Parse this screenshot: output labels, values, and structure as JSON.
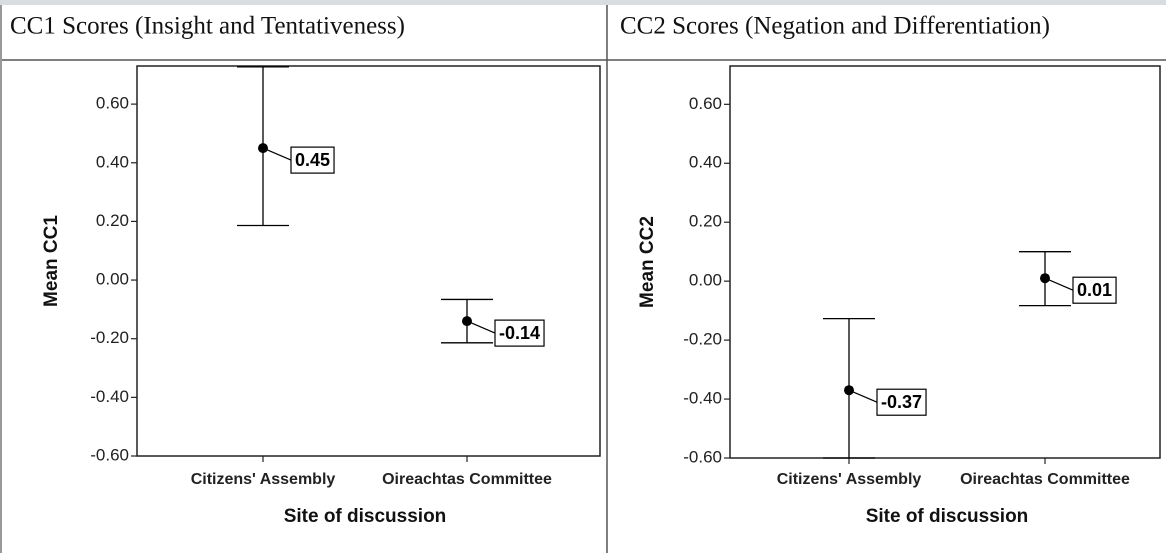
{
  "chart_data": [
    {
      "type": "errorbar",
      "title": "CC1 Scores (Insight and Tentativeness)",
      "x_label": "Site of discussion",
      "y_label": "Mean CC1",
      "categories": [
        "Citizens' Assembly",
        "Oireachtas Committee"
      ],
      "values": [
        0.45,
        -0.14
      ],
      "lower": [
        0.186,
        -0.214
      ],
      "upper": [
        0.727,
        -0.066
      ],
      "ylim": [
        -0.6,
        0.73
      ],
      "yticks": [
        {
          "value": -0.6,
          "label": "-0.60"
        },
        {
          "value": -0.4,
          "label": "-0.40"
        },
        {
          "value": -0.2,
          "label": "-0.20"
        },
        {
          "value": 0,
          "label": "0.00"
        },
        {
          "value": 0.2,
          "label": "0.20"
        },
        {
          "value": 0.4,
          "label": "0.40"
        },
        {
          "value": 0.6,
          "label": "0.60"
        }
      ],
      "color": "#000000"
    },
    {
      "type": "errorbar",
      "title": "CC2 Scores (Negation and Differentiation)",
      "x_label": "Site of discussion",
      "y_label": "Mean CC2",
      "categories": [
        "Citizens' Assembly",
        "Oireachtas Committee"
      ],
      "values": [
        -0.37,
        0.01
      ],
      "lower": [
        -0.6,
        -0.083
      ],
      "upper": [
        -0.127,
        0.1
      ],
      "ylim": [
        -0.6,
        0.73
      ],
      "yticks": [
        {
          "value": -0.6,
          "label": "-0.60"
        },
        {
          "value": -0.4,
          "label": "-0.40"
        },
        {
          "value": -0.2,
          "label": "-0.20"
        },
        {
          "value": 0,
          "label": "0.00"
        },
        {
          "value": 0.2,
          "label": "0.20"
        },
        {
          "value": 0.4,
          "label": "0.40"
        },
        {
          "value": 0.6,
          "label": "0.60"
        }
      ],
      "color": "#000000"
    }
  ]
}
